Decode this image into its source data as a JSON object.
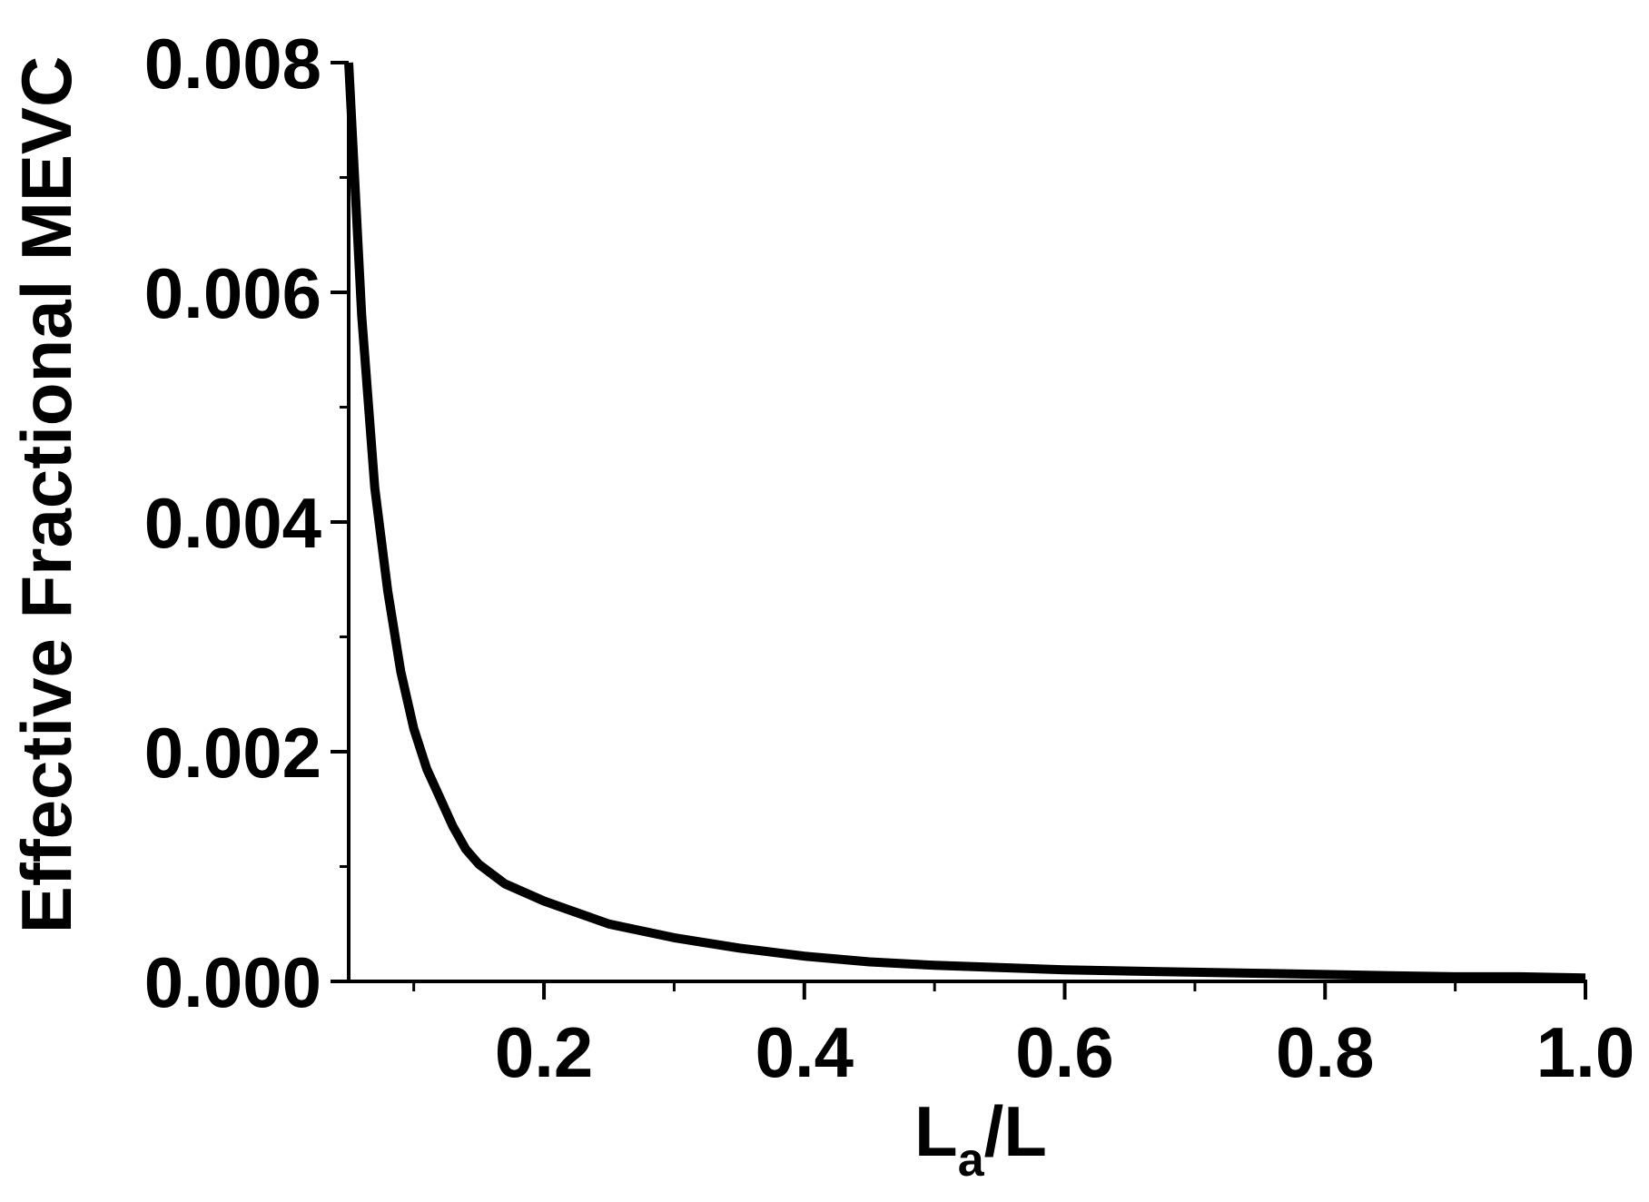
{
  "chart_data": {
    "type": "line",
    "title": "",
    "xlabel": {
      "main": "L",
      "subscript": "a",
      "suffix": "/L"
    },
    "ylabel": "Effective Fractional MEVC",
    "xlim": [
      0.05,
      1.0
    ],
    "ylim": [
      0,
      0.008
    ],
    "xticks": [
      0.2,
      0.4,
      0.6,
      0.8,
      1.0
    ],
    "xtick_labels": [
      "0.2",
      "0.4",
      "0.6",
      "0.8",
      "1.0"
    ],
    "xminor_ticks": [
      0.1,
      0.3,
      0.5,
      0.7,
      0.9
    ],
    "yticks": [
      0,
      0.002,
      0.004,
      0.006,
      0.008
    ],
    "ytick_labels": [
      "0.000",
      "0.002",
      "0.004",
      "0.006",
      "0.008"
    ],
    "yminor_ticks": [
      0.001,
      0.003,
      0.005,
      0.007
    ],
    "grid": false,
    "legend": "none",
    "line_color": "#000000",
    "series": [
      {
        "x": [
          0.05,
          0.06,
          0.07,
          0.08,
          0.09,
          0.1,
          0.11,
          0.12,
          0.13,
          0.14,
          0.15,
          0.17,
          0.2,
          0.25,
          0.3,
          0.35,
          0.4,
          0.45,
          0.5,
          0.55,
          0.6,
          0.65,
          0.7,
          0.75,
          0.8,
          0.85,
          0.9,
          0.95,
          1.0
        ],
        "values": [
          0.008,
          0.0058,
          0.0043,
          0.0034,
          0.0027,
          0.0022,
          0.00185,
          0.0016,
          0.00135,
          0.00115,
          0.00102,
          0.00085,
          0.0007,
          0.0005,
          0.00038,
          0.00029,
          0.00022,
          0.00017,
          0.00014,
          0.00012,
          0.0001,
          9e-05,
          8e-05,
          7e-05,
          6e-05,
          5e-05,
          4e-05,
          4e-05,
          3e-05
        ]
      }
    ]
  }
}
